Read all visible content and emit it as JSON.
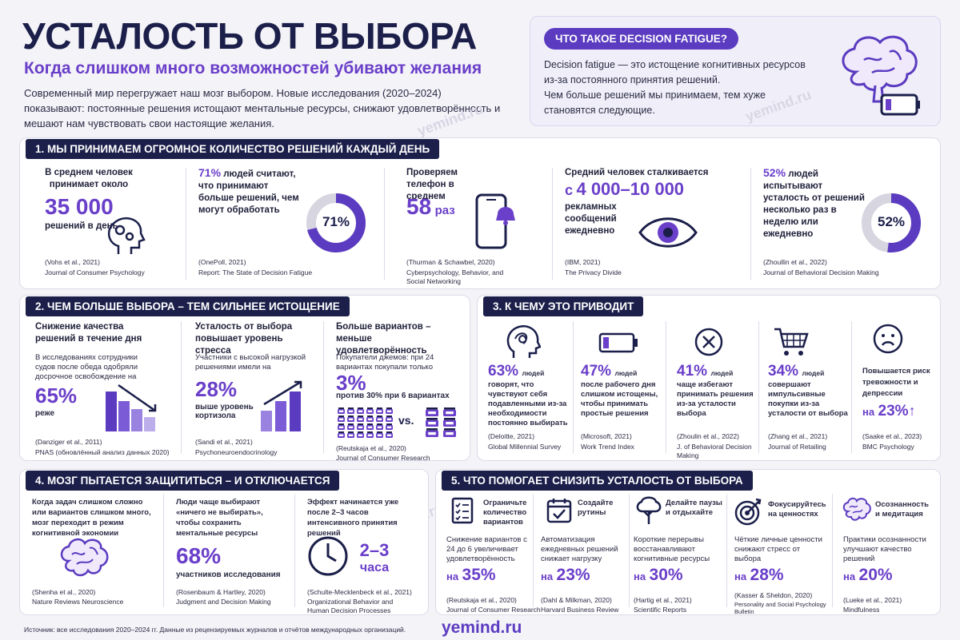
{
  "header": {
    "title": "УСТАЛОСТЬ ОТ ВЫБОРА",
    "subtitle": "Когда слишком много возможностей убивают желания",
    "intro": "Современный мир перегружает наш мозг выбором. Новые исследования (2020–2024) показывают: постоянные решения истощают ментальные ресурсы, снижают удовлетворённость и мешают нам чувствовать свои настоящие желания."
  },
  "info": {
    "pill": "ЧТО ТАКОЕ DECISION FATIGUE?",
    "text1": "Decision fatigue — это истощение когнитивных ресурсов из-за постоянного принятия решений.",
    "text2": "Чем больше решений мы принимаем, тем хуже становятся следующие."
  },
  "watermark": "yemind.ru",
  "s1": {
    "title": "1. МЫ ПРИНИМАЕМ ОГРОМНОЕ КОЛИЧЕСТВО РЕШЕНИЙ КАЖДЫЙ ДЕНЬ",
    "c1": {
      "pre": "В среднем человек принимает около",
      "num": "35 000",
      "post": "решений в день",
      "src1": "(Vohs et al., 2021)",
      "src2": "Journal of Consumer Psychology"
    },
    "c2": {
      "pct": "71%",
      "text": "людей считают, что принимают больше решений, чем могут обработать",
      "donut": "71%",
      "value": 0.71,
      "src1": "(OnePoll, 2021)",
      "src2": "Report: The State of Decision Fatigue"
    },
    "c3": {
      "pre": "Проверяем телефон в среднем",
      "num": "58",
      "unit": "раз",
      "src1": "(Thurman & Schawbel, 2020)",
      "src2": "Cyberpsychology, Behavior, and Social Networking"
    },
    "c4": {
      "pre": "Средний человек сталкивается",
      "prefix": "с",
      "num": "4 000–10 000",
      "post": "рекламных сообщений ежедневно",
      "src1": "(IBM, 2021)",
      "src2": "The Privacy Divide"
    },
    "c5": {
      "pct": "52%",
      "text": "людей испытывают усталость от решений несколько раз в неделю или ежедневно",
      "donut": "52%",
      "value": 0.52,
      "src1": "(Zhoullin et al., 2022)",
      "src2": "Journal of Behavioral Decision Making"
    }
  },
  "s2": {
    "title": "2. ЧЕМ БОЛЬШЕ ВЫБОРА – ТЕМ СИЛЬНЕЕ ИСТОЩЕНИЕ",
    "c1": {
      "head": "Снижение качества решений в течение дня",
      "text": "В исследованиях сотрудники судов после обеда одобряли досрочное освобождение на",
      "num": "65%",
      "post": "реже",
      "src1": "(Danziger et al., 2011)",
      "src2": "PNAS (обновлённый анализ данных 2020)"
    },
    "c2": {
      "head": "Усталость от выбора повышает уровень стресса",
      "text": "Участники с высокой нагрузкой решениями имели на",
      "num": "28%",
      "post": "выше уровень кортизола",
      "src1": "(Sandi et al., 2021)",
      "src2": "Psychoneuroendocrinology"
    },
    "c3": {
      "head": "Больше вариантов – меньше удовлетворённость",
      "text": "Покупатели джемов: при 24 вариантах покупали только",
      "num": "3%",
      "post": "против 30% при 6 вариантах",
      "vs": "vs.",
      "src1": "(Reutskaja et al., 2020)",
      "src2": "Journal of Consumer Research"
    }
  },
  "s3": {
    "title": "3. К ЧЕМУ ЭТО ПРИВОДИТ",
    "items": [
      {
        "num": "63%",
        "lbl": "людей",
        "text": "говорят, что чувствуют себя подавленными из-за необходимости постоянно выбирать",
        "src1": "(Deloitte, 2021)",
        "src2": "Global Millennial Survey"
      },
      {
        "num": "47%",
        "lbl": "людей",
        "text": "после рабочего дня слишком истощены, чтобы принимать простые решения",
        "src1": "(Microsoft, 2021)",
        "src2": "Work Trend Index"
      },
      {
        "num": "41%",
        "lbl": "людей",
        "text": "чаще избегают принимать решения из-за усталости выбора",
        "src1": "(Zhoulin et al., 2022)",
        "src2": "J. of Behavioral Decision Making"
      },
      {
        "num": "34%",
        "lbl": "людей",
        "text": "совершают импульсивные покупки из-за усталости от выбора",
        "src1": "(Zhang et al., 2021)",
        "src2": "Journal of Retailing"
      },
      {
        "num": "23%",
        "lbl": "",
        "pre": "Повышается риск тревожности и депрессии",
        "prefix": "на",
        "arrow": "↑",
        "src1": "(Saake et al., 2023)",
        "src2": "BMC Psychology"
      }
    ]
  },
  "s4": {
    "title": "4. МОЗГ ПЫТАЕТСЯ ЗАЩИТИТЬСЯ – И ОТКЛЮЧАЕТСЯ",
    "c1": {
      "text": "Когда задач слишком сложно или вариантов слишком много, мозг переходит в режим когнитивной экономии",
      "src1": "(Shenha et al., 2020)",
      "src2": "Nature Reviews Neuroscience"
    },
    "c2": {
      "text": "Люди чаще выбирают «ничего не выбирать», чтобы сохранить ментальные ресурсы",
      "num": "68%",
      "post": "участников исследования",
      "src1": "(Rosenbaum & Hartley, 2020)",
      "src2": "Judgment and Decision Making"
    },
    "c3": {
      "text": "Эффект начинается уже после 2–3 часов интенсивного принятия решений",
      "num": "2–3",
      "unit": "часа",
      "src1": "(Schulte-Mecklenbeck et al., 2021)",
      "src2": "Organizational Behavior and Human Decision Processes"
    }
  },
  "s5": {
    "title": "5. ЧТО ПОМОГАЕТ СНИЗИТЬ УСТАЛОСТЬ ОТ ВЫБОРА",
    "items": [
      {
        "head": "Ограничьте количество вариантов",
        "text": "Снижение вариантов с 24 до 6 увеличивает удовлетворённость",
        "prefix": "на",
        "num": "35%",
        "src1": "(Reutskaja et al., 2020)",
        "src2": "Journal of Consumer Research"
      },
      {
        "head": "Создайте рутины",
        "text": "Автоматизация ежедневных решений снижает нагрузку",
        "prefix": "на",
        "num": "23%",
        "src1": "(Dahl & Milkman, 2020)",
        "src2": "Harvard Business Review"
      },
      {
        "head": "Делайте паузы и отдыхайте",
        "text": "Короткие перерывы восстанавливают когнитивные ресурсы",
        "prefix": "на",
        "num": "30%",
        "src1": "(Hartig et al., 2021)",
        "src2": "Scientific Reports"
      },
      {
        "head": "Фокусируйтесь на ценностях",
        "text": "Чёткие личные ценности снижают стресс от выбора",
        "prefix": "на",
        "num": "28%",
        "src1": "(Kasser & Sheldon, 2020)",
        "src2": "Personality and Social Psychology Bulletin"
      },
      {
        "head": "Осознанность и медитация",
        "text": "Практики осознанности улучшают качество решений",
        "prefix": "на",
        "num": "20%",
        "src1": "(Lueke et al., 2021)",
        "src2": "Mindfulness"
      }
    ]
  },
  "footer": {
    "note": "Источник: все исследования 2020–2024 гг. Данные из рецензируемых журналов и отчётов международных организаций.",
    "brand": "yemind.ru"
  }
}
